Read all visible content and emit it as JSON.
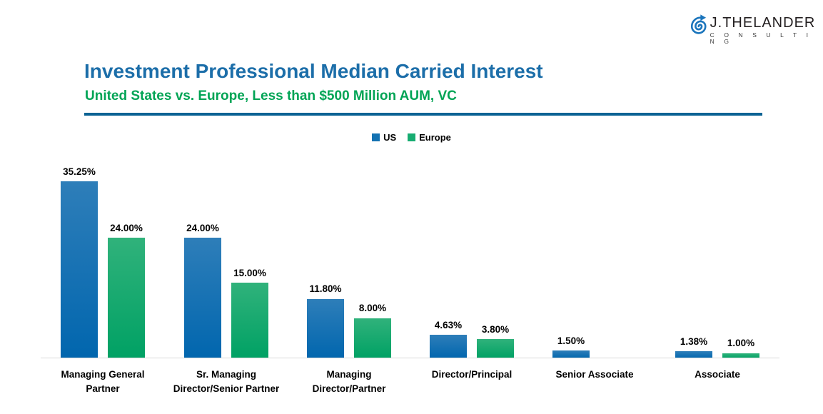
{
  "logo": {
    "name": "J.THELANDER",
    "tagline": "C O N S U L T I N G",
    "icon": "spiral-arrow-icon",
    "icon_color": "#1b75bc"
  },
  "header": {
    "title": "Investment Professional Median Carried Interest",
    "subtitle": "United States vs. Europe, Less than $500 Million AUM, VC",
    "title_color": "#1c6ea9",
    "subtitle_color": "#00a455",
    "divider_color": "#0b6394"
  },
  "colors": {
    "us_gradient_top": "#2e7eb9",
    "us_gradient_bottom": "#0166ae",
    "europe_gradient_top": "#30b27b",
    "europe_gradient_bottom": "#00a164",
    "us_legend": "#1472b2",
    "europe_legend": "#17ac71",
    "axis_line": "#d9d9d9",
    "label_text": "#000000"
  },
  "chart_data": {
    "type": "bar",
    "title": "Investment Professional Median Carried Interest",
    "subtitle": "United States vs. Europe, Less than $500 Million AUM, VC",
    "categories": [
      "Managing General\nPartner",
      "Sr. Managing\nDirector/Senior Partner",
      "Managing\nDirector/Partner",
      "Director/Principal",
      "Senior Associate",
      "Associate"
    ],
    "series": [
      {
        "name": "US",
        "color": "#1472b2",
        "values": [
          35.25,
          24.0,
          11.8,
          4.63,
          1.5,
          1.38
        ]
      },
      {
        "name": "Europe",
        "color": "#17ac71",
        "values": [
          24.0,
          15.0,
          8.0,
          3.8,
          null,
          1.0
        ]
      }
    ],
    "data_labels": {
      "US": [
        "35.25%",
        "24.00%",
        "11.80%",
        "4.63%",
        "1.50%",
        "1.38%"
      ],
      "Europe": [
        "24.00%",
        "15.00%",
        "8.00%",
        "3.80%",
        null,
        "1.00%"
      ]
    },
    "value_unit": "%",
    "ylim": [
      0,
      36
    ],
    "y_axis_visible": false,
    "grid": false,
    "legend_position": "top-center"
  }
}
